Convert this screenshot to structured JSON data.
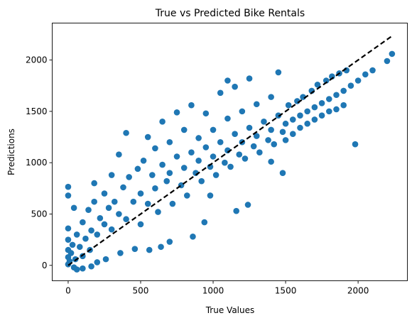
{
  "chart_data": {
    "type": "scatter",
    "title": "True vs Predicted Bike Rentals",
    "xlabel": "True Values",
    "ylabel": "Predictions",
    "xlim": [
      -110,
      2340
    ],
    "ylim": [
      -150,
      2360
    ],
    "x_ticks": [
      0,
      500,
      1000,
      1500,
      2000
    ],
    "y_ticks": [
      0,
      500,
      1000,
      1500,
      2000
    ],
    "x_tick_labels": [
      "0",
      "500",
      "1000",
      "1500",
      "2000"
    ],
    "y_tick_labels": [
      "0",
      "500",
      "1000",
      "1500",
      "2000"
    ],
    "grid": false,
    "point_color": "#1f77b4",
    "reference_line": {
      "style": "dashed",
      "color": "#000000",
      "points": [
        [
          0,
          0
        ],
        [
          2234,
          2234
        ]
      ]
    },
    "series": [
      {
        "values_note_free": true,
        "points": [
          [
            0,
            10
          ],
          [
            0,
            80
          ],
          [
            0,
            150
          ],
          [
            0,
            250
          ],
          [
            0,
            360
          ],
          [
            0,
            680
          ],
          [
            0,
            765
          ],
          [
            10,
            40
          ],
          [
            20,
            120
          ],
          [
            30,
            200
          ],
          [
            40,
            -20
          ],
          [
            50,
            60
          ],
          [
            60,
            300
          ],
          [
            80,
            180
          ],
          [
            100,
            420
          ],
          [
            100,
            90
          ],
          [
            120,
            260
          ],
          [
            140,
            540
          ],
          [
            150,
            150
          ],
          [
            160,
            340
          ],
          [
            180,
            800
          ],
          [
            180,
            620
          ],
          [
            200,
            300
          ],
          [
            220,
            460
          ],
          [
            250,
            400
          ],
          [
            250,
            700
          ],
          [
            280,
            560
          ],
          [
            300,
            350
          ],
          [
            300,
            880
          ],
          [
            320,
            620
          ],
          [
            350,
            500
          ],
          [
            350,
            1080
          ],
          [
            380,
            760
          ],
          [
            400,
            450
          ],
          [
            400,
            1290
          ],
          [
            420,
            860
          ],
          [
            450,
            620
          ],
          [
            480,
            940
          ],
          [
            500,
            700
          ],
          [
            500,
            400
          ],
          [
            520,
            1020
          ],
          [
            550,
            600
          ],
          [
            550,
            1250
          ],
          [
            580,
            880
          ],
          [
            600,
            750
          ],
          [
            600,
            1140
          ],
          [
            620,
            520
          ],
          [
            650,
            980
          ],
          [
            650,
            1400
          ],
          [
            680,
            820
          ],
          [
            700,
            900
          ],
          [
            700,
            1200
          ],
          [
            720,
            600
          ],
          [
            750,
            1060
          ],
          [
            750,
            1490
          ],
          [
            780,
            780
          ],
          [
            800,
            950
          ],
          [
            800,
            1320
          ],
          [
            820,
            680
          ],
          [
            850,
            1100
          ],
          [
            850,
            1560
          ],
          [
            880,
            900
          ],
          [
            900,
            1020
          ],
          [
            900,
            1240
          ],
          [
            920,
            820
          ],
          [
            950,
            1150
          ],
          [
            950,
            1480
          ],
          [
            980,
            960
          ],
          [
            1000,
            1060
          ],
          [
            1000,
            1320
          ],
          [
            1020,
            880
          ],
          [
            1050,
            1200
          ],
          [
            1050,
            1680
          ],
          [
            1080,
            1000
          ],
          [
            1100,
            1120
          ],
          [
            1100,
            1430
          ],
          [
            1120,
            960
          ],
          [
            1150,
            1280
          ],
          [
            1150,
            1740
          ],
          [
            1180,
            1080
          ],
          [
            1200,
            1200
          ],
          [
            1200,
            1500
          ],
          [
            1220,
            1040
          ],
          [
            1250,
            1340
          ],
          [
            1250,
            1820
          ],
          [
            1280,
            1160
          ],
          [
            1300,
            1260
          ],
          [
            1300,
            1570
          ],
          [
            1320,
            1100
          ],
          [
            1350,
            1400
          ],
          [
            1380,
            1220
          ],
          [
            1400,
            1320
          ],
          [
            1400,
            1640
          ],
          [
            1420,
            1180
          ],
          [
            1450,
            1460
          ],
          [
            1450,
            1880
          ],
          [
            1480,
            1300
          ],
          [
            1500,
            1380
          ],
          [
            1500,
            1220
          ],
          [
            1520,
            1560
          ],
          [
            1550,
            1420
          ],
          [
            1550,
            1280
          ],
          [
            1580,
            1600
          ],
          [
            1600,
            1460
          ],
          [
            1600,
            1340
          ],
          [
            1620,
            1640
          ],
          [
            1650,
            1500
          ],
          [
            1650,
            1380
          ],
          [
            1680,
            1700
          ],
          [
            1700,
            1540
          ],
          [
            1700,
            1420
          ],
          [
            1720,
            1760
          ],
          [
            1750,
            1580
          ],
          [
            1750,
            1460
          ],
          [
            1780,
            1800
          ],
          [
            1800,
            1620
          ],
          [
            1800,
            1500
          ],
          [
            1820,
            1840
          ],
          [
            1850,
            1660
          ],
          [
            1850,
            1520
          ],
          [
            1870,
            1870
          ],
          [
            1900,
            1700
          ],
          [
            1900,
            1560
          ],
          [
            1920,
            1900
          ],
          [
            1950,
            1750
          ],
          [
            1980,
            1180
          ],
          [
            2000,
            1800
          ],
          [
            2050,
            1860
          ],
          [
            2100,
            1900
          ],
          [
            2234,
            2060
          ],
          [
            2200,
            1990
          ],
          [
            1100,
            1800
          ],
          [
            1400,
            1010
          ],
          [
            1480,
            900
          ],
          [
            1240,
            590
          ],
          [
            1160,
            530
          ],
          [
            980,
            680
          ],
          [
            940,
            420
          ],
          [
            860,
            280
          ],
          [
            700,
            230
          ],
          [
            640,
            180
          ],
          [
            560,
            150
          ],
          [
            460,
            160
          ],
          [
            360,
            120
          ],
          [
            260,
            60
          ],
          [
            200,
            30
          ],
          [
            160,
            -10
          ],
          [
            100,
            -30
          ],
          [
            60,
            -40
          ],
          [
            40,
            560
          ]
        ]
      }
    ]
  }
}
